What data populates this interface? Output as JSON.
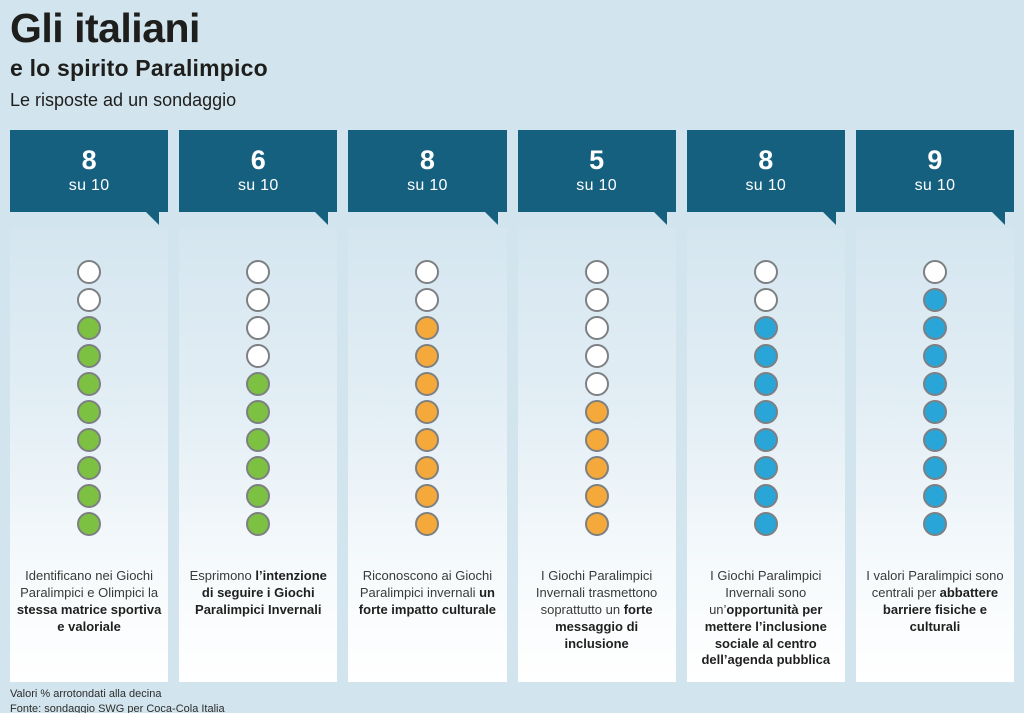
{
  "header": {
    "title": "Gli italiani",
    "subtitle": "e lo spirito Paralimpico",
    "tagline": "Le risposte ad un sondaggio"
  },
  "colors": {
    "page_background": "#d2e4ee",
    "badge_teal": "#15607f",
    "green": "#7dc142",
    "orange": "#f5a93a",
    "blue": "#2aa5d8",
    "dot_border": "#7d8083"
  },
  "columns": [
    {
      "score": "8",
      "scale_label": "su 10",
      "dots": {
        "total": 10,
        "empty": 2,
        "filled": 8,
        "color": "#7dc142"
      },
      "text_regular": "Identificano nei Giochi Paralimpici e Olimpici la ",
      "text_bold": "stessa matrice sportiva e valoriale"
    },
    {
      "score": "6",
      "scale_label": "su 10",
      "dots": {
        "total": 10,
        "empty": 4,
        "filled": 6,
        "color": "#7dc142"
      },
      "text_regular": "Esprimono ",
      "text_bold": "l’intenzione di seguire i Giochi Paralimpici Invernali"
    },
    {
      "score": "8",
      "scale_label": "su 10",
      "dots": {
        "total": 10,
        "empty": 2,
        "filled": 8,
        "color": "#f5a93a"
      },
      "text_regular": "Riconoscono ai Giochi Paralimpici invernali ",
      "text_bold": "un forte impatto culturale"
    },
    {
      "score": "5",
      "scale_label": "su 10",
      "dots": {
        "total": 10,
        "empty": 5,
        "filled": 5,
        "color": "#f5a93a"
      },
      "text_regular": "I Giochi Paralimpici Invernali trasmettono soprattutto un ",
      "text_bold": "forte messaggio di inclusione"
    },
    {
      "score": "8",
      "scale_label": "su 10",
      "dots": {
        "total": 10,
        "empty": 2,
        "filled": 8,
        "color": "#2aa5d8"
      },
      "text_regular": "I Giochi Paralimpici Invernali sono un’",
      "text_bold": "opportunità per mettere l’inclusione sociale al centro dell’agenda pubblica"
    },
    {
      "score": "9",
      "scale_label": "su 10",
      "dots": {
        "total": 10,
        "empty": 1,
        "filled": 9,
        "color": "#2aa5d8"
      },
      "text_regular": "I valori Paralimpici sono centrali per ",
      "text_bold": "abbattere barriere fisiche e culturali"
    }
  ],
  "footer": {
    "note": "Valori % arrotondati alla decina",
    "source": "Fonte: sondaggio SWG per Coca-Cola Italia"
  },
  "chart_data": {
    "type": "bar",
    "title": "Gli italiani e lo spirito Paralimpico",
    "subtitle": "Le risposte ad un sondaggio",
    "categories": [
      "Identificano nei Giochi Paralimpici e Olimpici la stessa matrice sportiva e valoriale",
      "Esprimono l’intenzione di seguire i Giochi Paralimpici Invernali",
      "Riconoscono ai Giochi Paralimpici invernali un forte impatto culturale",
      "I Giochi Paralimpici Invernali trasmettono soprattutto un forte messaggio di inclusione",
      "I Giochi Paralimpici Invernali sono un’opportunità per mettere l’inclusione sociale al centro dell’agenda pubblica",
      "I valori Paralimpici sono centrali per abbattere barriere fisiche e culturali"
    ],
    "values": [
      8,
      6,
      8,
      5,
      8,
      9
    ],
    "unit": "su 10",
    "ylim": [
      0,
      10
    ],
    "bar_colors": [
      "#7dc142",
      "#7dc142",
      "#f5a93a",
      "#f5a93a",
      "#2aa5d8",
      "#2aa5d8"
    ],
    "style": "pictograph (10 stacked dots per category, filled from bottom)",
    "notes": [
      "Valori % arrotondati alla decina",
      "Fonte: sondaggio SWG per Coca-Cola Italia"
    ]
  }
}
